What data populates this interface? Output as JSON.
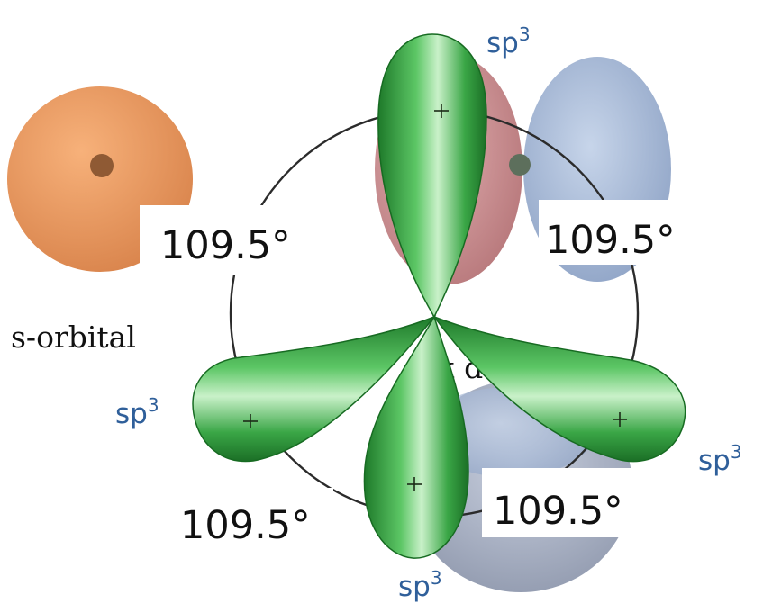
{
  "labels": {
    "s_orbital": "s-orbital",
    "hybrid": "sp",
    "hybrid_superscript": "3",
    "angle": "109.5°",
    "partial_text": "x d"
  },
  "colors": {
    "s_orbital": "#e8975e",
    "hybrid_lobe": "#2f9a3b",
    "back_lobe_pink": "#c98a8d",
    "back_lobe_blue": "#9fb3d3",
    "sp_label": "#2f5f9a"
  }
}
